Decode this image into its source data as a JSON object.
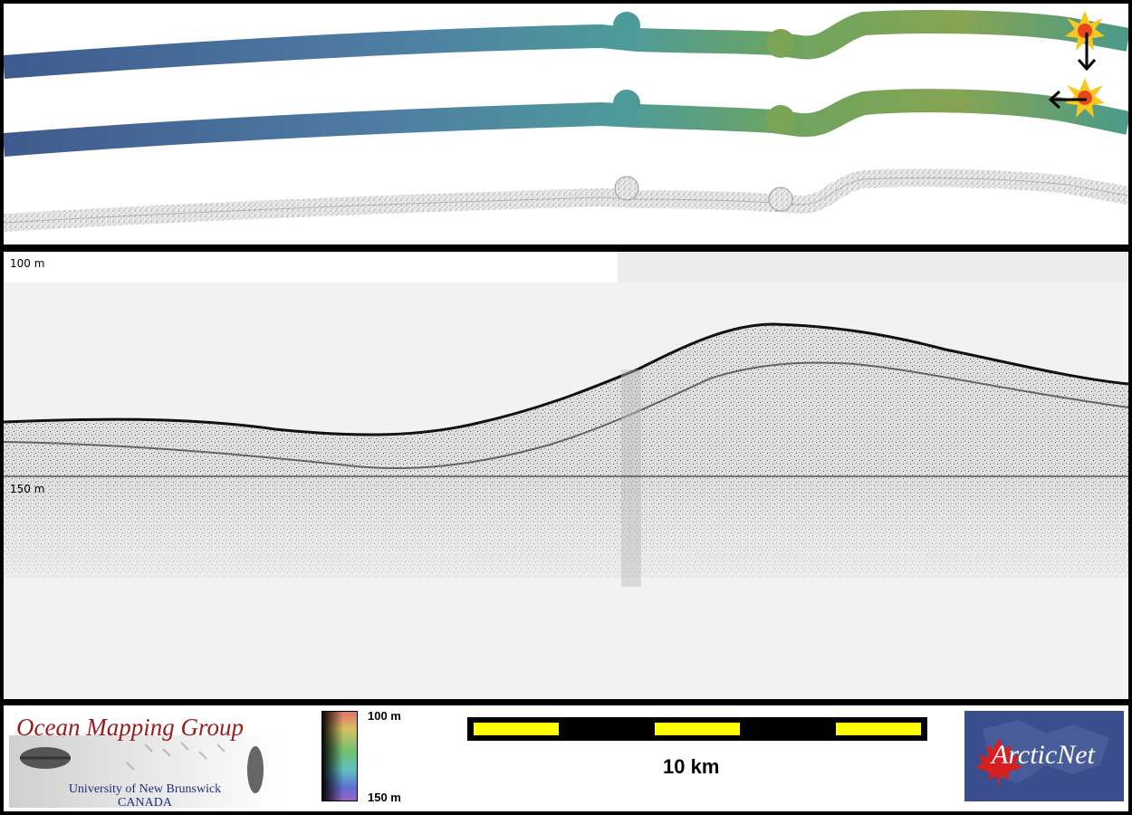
{
  "echogram": {
    "depth_labels": {
      "top": "100 m",
      "mid": "150 m"
    }
  },
  "footer": {
    "logo_title": "Ocean Mapping Group",
    "logo_university": "University of New Brunswick",
    "logo_country": "CANADA",
    "colorbar": {
      "top_label": "100 m",
      "bottom_label": "150 m"
    },
    "scale_bar": {
      "label": "10 km",
      "fill_colors": [
        "#ffff00",
        "#000000"
      ]
    },
    "partner_logo": "ArcticNet"
  },
  "icons": [
    "sun-burst-icon",
    "arrow-down-icon",
    "arrow-left-icon",
    "maple-leaf-icon"
  ]
}
